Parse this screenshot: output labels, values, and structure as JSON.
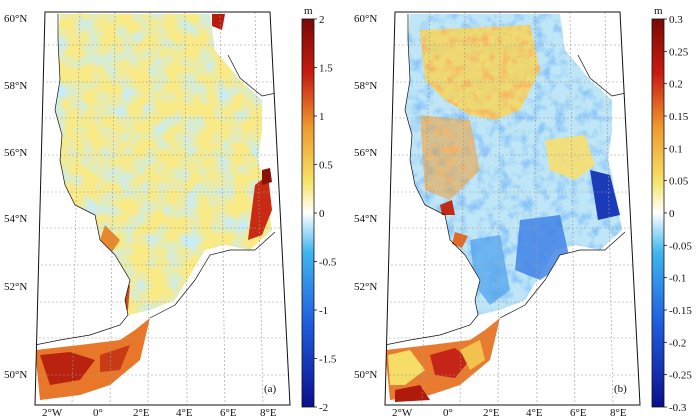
{
  "panels": [
    {
      "tag": "(a)",
      "lat_labels": [
        "60°N",
        "58°N",
        "56°N",
        "54°N",
        "52°N",
        "50°N"
      ],
      "lon_labels": [
        "2°W",
        "0°",
        "2°E",
        "4°E",
        "6°E",
        "8°E"
      ],
      "colorbar": {
        "unit": "m",
        "ticks": [
          "2",
          "1.5",
          "1",
          "0.5",
          "0",
          "-0.5",
          "-1",
          "-1.5",
          "-2"
        ],
        "range": [
          -2,
          2
        ]
      }
    },
    {
      "tag": "(b)",
      "lat_labels": [
        "60°N",
        "58°N",
        "56°N",
        "54°N",
        "52°N",
        "50°N"
      ],
      "lon_labels": [
        "2°W",
        "0°",
        "2°E",
        "4°E",
        "6°E",
        "8°E"
      ],
      "colorbar": {
        "unit": "m",
        "ticks": [
          "0.3",
          "0.25",
          "0.2",
          "0.15",
          "0.1",
          "0.05",
          "0",
          "-0.05",
          "-0.1",
          "-0.15",
          "-0.2",
          "-0.25",
          "-0.3"
        ],
        "range": [
          -0.3,
          0.3
        ]
      }
    }
  ],
  "colormap": [
    "#0a0f8c",
    "#1f5fe0",
    "#3fb7ee",
    "#ffffff",
    "#f6e46a",
    "#ef9a2e",
    "#c81b12",
    "#7a0a05"
  ]
}
